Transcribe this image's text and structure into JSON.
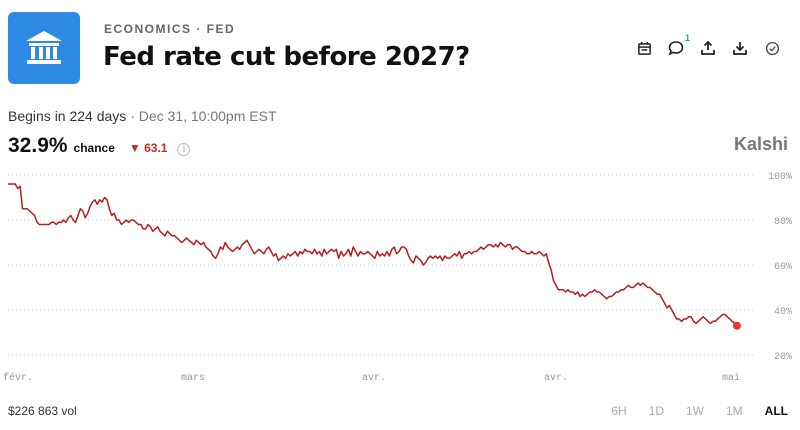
{
  "header": {
    "category": "ECONOMICS · FED",
    "title": "Fed rate cut before 2027?",
    "comment_badge": "1"
  },
  "icons": {
    "logo": "bank-icon",
    "actions": [
      "calendar-icon",
      "comment-icon",
      "share-icon",
      "download-icon",
      "check-circle-icon"
    ]
  },
  "market": {
    "begins_label": "Begins in 224 days",
    "begins_date": "· Dec 31, 10:00pm EST",
    "chance_value": "32.9%",
    "chance_label": "chance",
    "delta": "▼ 63.1",
    "brand": "Kalshi",
    "volume": "$226 863 vol"
  },
  "time_ranges": [
    "6H",
    "1D",
    "1W",
    "1M",
    "ALL"
  ],
  "active_range": "ALL",
  "colors": {
    "line": "#b71c1c",
    "accent": "#2f8ae6",
    "endpoint": "#e53935"
  },
  "chart_data": {
    "type": "line",
    "title": "",
    "xlabel": "",
    "ylabel": "",
    "ylim": [
      20,
      100
    ],
    "y_ticks": [
      "100%",
      "80%",
      "60%",
      "40%",
      "20%"
    ],
    "x_tick_labels": [
      "févr.",
      "mars",
      "avr.",
      "avr.",
      "mai"
    ],
    "grid": true,
    "series": [
      {
        "values": [
          96,
          96,
          96,
          96,
          94,
          95,
          85,
          85,
          85,
          84,
          83,
          82,
          79,
          78,
          78,
          78,
          78,
          78,
          79,
          79,
          78,
          79,
          79,
          80,
          79,
          81,
          82,
          80,
          79,
          82,
          85,
          84,
          81,
          83,
          86,
          88,
          89,
          87,
          89,
          88,
          90,
          89,
          85,
          82,
          83,
          80,
          80,
          78,
          79,
          80,
          79,
          80,
          80,
          79,
          78,
          78,
          76,
          76,
          78,
          77,
          75,
          76,
          77,
          75,
          74,
          73,
          75,
          74,
          73,
          73,
          72,
          71,
          70,
          71,
          72,
          71,
          70,
          69,
          71,
          70,
          69,
          70,
          68,
          67,
          66,
          64,
          63,
          65,
          68,
          67,
          70,
          68,
          67,
          66,
          67,
          68,
          67,
          69,
          70,
          71,
          69,
          67,
          65,
          66,
          67,
          66,
          65,
          67,
          68,
          66,
          64,
          65,
          62,
          63,
          64,
          63,
          65,
          64,
          65,
          66,
          64,
          66,
          65,
          67,
          66,
          66,
          65,
          67,
          65,
          66,
          64,
          67,
          65,
          66,
          67,
          66,
          67,
          63,
          66,
          64,
          65,
          67,
          64,
          68,
          66,
          64,
          66,
          65,
          65,
          66,
          65,
          64,
          63,
          66,
          64,
          65,
          64,
          66,
          64,
          67,
          68,
          65,
          66,
          68,
          68,
          67,
          64,
          62,
          61,
          64,
          63,
          62,
          60,
          61,
          63,
          64,
          63,
          64,
          63,
          64,
          62,
          64,
          63,
          63,
          64,
          65,
          64,
          66,
          63,
          65,
          65,
          66,
          65,
          66,
          66,
          67,
          68,
          67,
          68,
          69,
          69,
          68,
          69,
          68,
          70,
          69,
          68,
          69,
          69,
          67,
          68,
          68,
          67,
          66,
          66,
          65,
          65,
          66,
          65,
          65,
          66,
          65,
          64,
          65,
          61,
          58,
          53,
          51,
          49,
          49,
          49,
          48,
          49,
          48,
          48,
          47,
          48,
          46,
          47,
          46,
          47,
          48,
          48,
          49,
          48,
          48,
          47,
          46,
          45,
          46,
          46,
          47,
          48,
          48,
          49,
          49,
          50,
          51,
          50,
          50,
          51,
          52,
          51,
          52,
          51,
          50,
          50,
          49,
          48,
          47,
          47,
          45,
          43,
          41,
          42,
          40,
          38,
          36,
          36,
          35,
          36,
          36,
          37,
          37,
          35,
          34,
          35,
          36,
          37,
          36,
          35,
          34,
          35,
          35,
          36,
          37,
          38,
          38,
          37,
          36,
          35,
          34,
          33
        ]
      }
    ]
  }
}
